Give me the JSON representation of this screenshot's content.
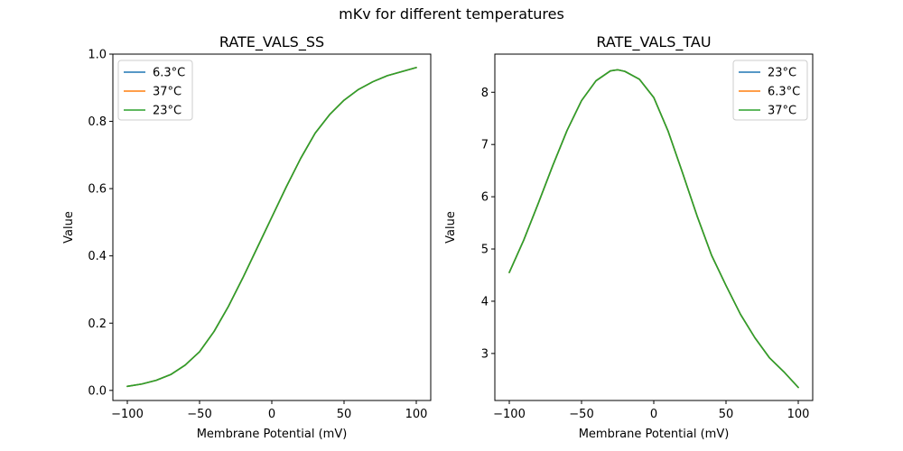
{
  "figure": {
    "suptitle": "mKv for different temperatures"
  },
  "chart_data": [
    {
      "type": "line",
      "title": "RATE_VALS_SS",
      "xlabel": "Membrane Potential (mV)",
      "ylabel": "Value",
      "xlim": [
        -110,
        110
      ],
      "ylim": [
        -0.03,
        1.0
      ],
      "xticks": [
        -100,
        -50,
        0,
        50,
        100
      ],
      "xtick_labels": [
        "−100",
        "−50",
        "0",
        "50",
        "100"
      ],
      "yticks": [
        0.0,
        0.2,
        0.4,
        0.6,
        0.8,
        1.0
      ],
      "ytick_labels": [
        "0.0",
        "0.2",
        "0.4",
        "0.6",
        "0.8",
        "1.0"
      ],
      "legend_position": "top-left",
      "x": [
        -100,
        -90,
        -80,
        -70,
        -60,
        -50,
        -40,
        -30,
        -20,
        -10,
        0,
        10,
        20,
        30,
        40,
        50,
        60,
        70,
        80,
        90,
        100
      ],
      "series": [
        {
          "name": "6.3°C",
          "color": "#1f77b4",
          "values": [
            0.012,
            0.019,
            0.03,
            0.047,
            0.075,
            0.115,
            0.175,
            0.25,
            0.335,
            0.425,
            0.515,
            0.605,
            0.69,
            0.765,
            0.82,
            0.863,
            0.895,
            0.918,
            0.936,
            0.948,
            0.96
          ]
        },
        {
          "name": "37°C",
          "color": "#ff7f0e",
          "values": [
            0.012,
            0.019,
            0.03,
            0.047,
            0.075,
            0.115,
            0.175,
            0.25,
            0.335,
            0.425,
            0.515,
            0.605,
            0.69,
            0.765,
            0.82,
            0.863,
            0.895,
            0.918,
            0.936,
            0.948,
            0.96
          ]
        },
        {
          "name": "23°C",
          "color": "#2ca02c",
          "values": [
            0.012,
            0.019,
            0.03,
            0.047,
            0.075,
            0.115,
            0.175,
            0.25,
            0.335,
            0.425,
            0.515,
            0.605,
            0.69,
            0.765,
            0.82,
            0.863,
            0.895,
            0.918,
            0.936,
            0.948,
            0.96
          ]
        }
      ]
    },
    {
      "type": "line",
      "title": "RATE_VALS_TAU",
      "xlabel": "Membrane Potential (mV)",
      "ylabel": "Value",
      "xlim": [
        -110,
        110
      ],
      "ylim": [
        2.1,
        8.73
      ],
      "xticks": [
        -100,
        -50,
        0,
        50,
        100
      ],
      "xtick_labels": [
        "−100",
        "−50",
        "0",
        "50",
        "100"
      ],
      "yticks": [
        3,
        4,
        5,
        6,
        7,
        8
      ],
      "ytick_labels": [
        "3",
        "4",
        "5",
        "6",
        "7",
        "8"
      ],
      "legend_position": "top-right",
      "x": [
        -100,
        -90,
        -80,
        -70,
        -60,
        -50,
        -40,
        -30,
        -25,
        -20,
        -10,
        0,
        10,
        20,
        30,
        40,
        50,
        60,
        70,
        80,
        90,
        100
      ],
      "series": [
        {
          "name": "23°C",
          "color": "#1f77b4",
          "values": [
            4.55,
            5.17,
            5.87,
            6.59,
            7.27,
            7.84,
            8.22,
            8.41,
            8.43,
            8.4,
            8.25,
            7.9,
            7.25,
            6.45,
            5.63,
            4.88,
            4.3,
            3.75,
            3.3,
            2.92,
            2.65,
            2.35
          ]
        },
        {
          "name": "6.3°C",
          "color": "#ff7f0e",
          "values": [
            4.55,
            5.17,
            5.87,
            6.59,
            7.27,
            7.84,
            8.22,
            8.41,
            8.43,
            8.4,
            8.25,
            7.9,
            7.25,
            6.45,
            5.63,
            4.88,
            4.3,
            3.75,
            3.3,
            2.92,
            2.65,
            2.35
          ]
        },
        {
          "name": "37°C",
          "color": "#2ca02c",
          "values": [
            4.55,
            5.17,
            5.87,
            6.59,
            7.27,
            7.84,
            8.22,
            8.41,
            8.43,
            8.4,
            8.25,
            7.9,
            7.25,
            6.45,
            5.63,
            4.88,
            4.3,
            3.75,
            3.3,
            2.92,
            2.65,
            2.35
          ]
        }
      ]
    }
  ]
}
